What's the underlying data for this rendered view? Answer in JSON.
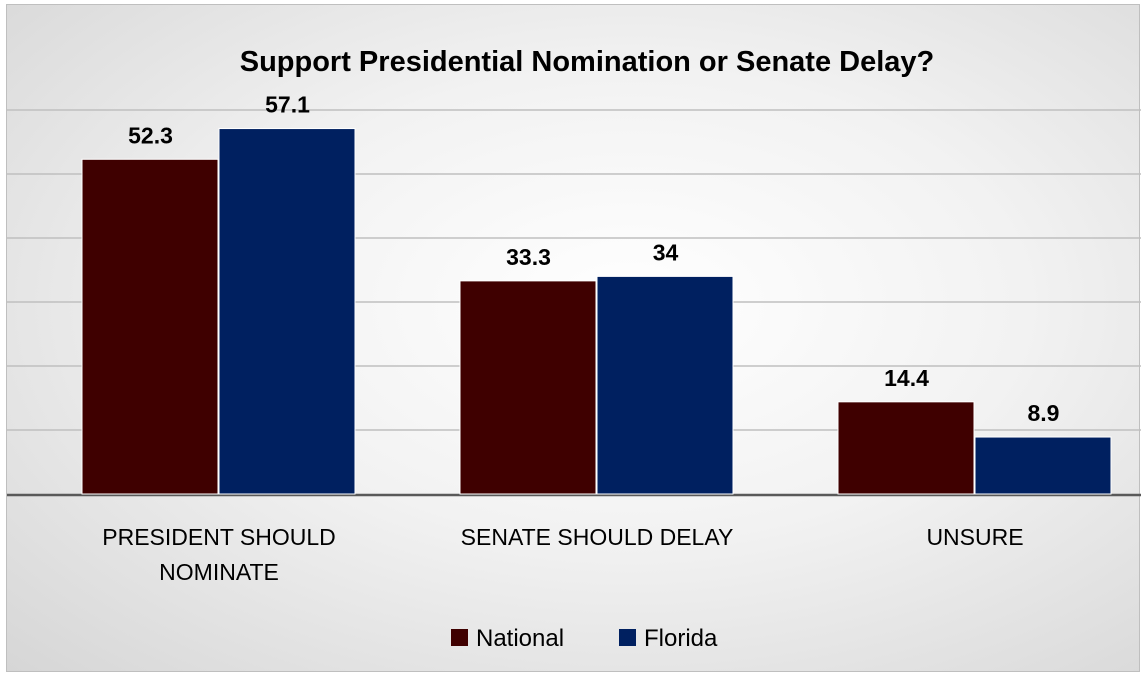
{
  "chart_data": {
    "type": "bar",
    "title": "Support Presidential Nomination or Senate Delay?",
    "categories": [
      [
        "PRESIDENT SHOULD",
        "NOMINATE"
      ],
      [
        "SENATE SHOULD DELAY"
      ],
      [
        "UNSURE"
      ]
    ],
    "series": [
      {
        "name": "National",
        "values": [
          52.3,
          33.3,
          14.4
        ],
        "labels": [
          "52.3",
          "33.3",
          "14.4"
        ],
        "color": "#3f0000"
      },
      {
        "name": "Florida",
        "values": [
          57.1,
          34,
          8.9
        ],
        "labels": [
          "57.1",
          "34",
          "8.9"
        ],
        "color": "#002060"
      }
    ],
    "ylim": [
      0,
      60
    ],
    "gridlines": true,
    "axis_line_color": "#595959",
    "grid_color": "#bfbfbf",
    "legend": "bottom"
  }
}
